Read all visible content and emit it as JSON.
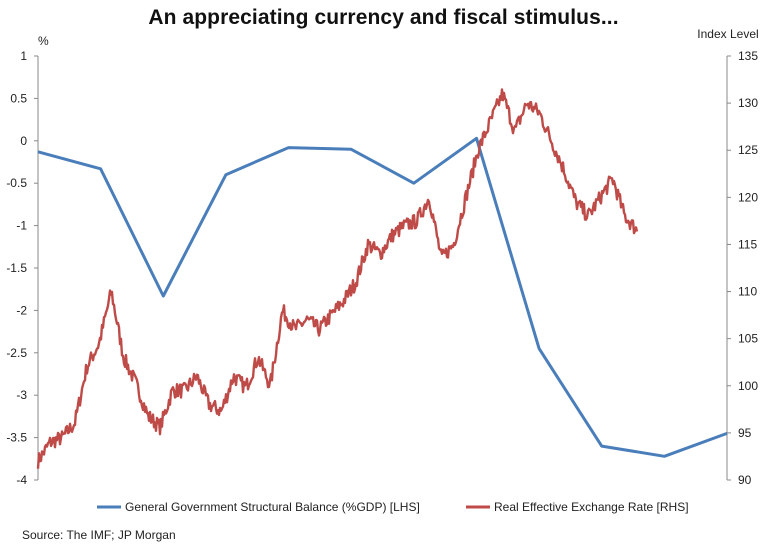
{
  "title": "An appreciating currency and fiscal stimulus...",
  "source": "Source: The IMF; JP Morgan",
  "chart_data": {
    "type": "line",
    "title": "An appreciating currency and fiscal stimulus...",
    "grid": false,
    "legend_position": "bottom",
    "left_axis": {
      "unit_label": "%",
      "ylim": [
        -4,
        1
      ],
      "ticks": [
        "1",
        "0.5",
        "0",
        "-0.5",
        "-1",
        "-1.5",
        "-2",
        "-2.5",
        "-3",
        "-3.5",
        "-4"
      ]
    },
    "right_axis": {
      "unit_label": "Index Level",
      "ylim": [
        90,
        135
      ],
      "ticks": [
        "135",
        "130",
        "125",
        "120",
        "115",
        "110",
        "105",
        "100",
        "95",
        "90"
      ]
    },
    "series": [
      {
        "name": "General Government Structural Balance (%GDP) [LHS]",
        "axis": "left",
        "color": "#4a7ebb",
        "values": [
          -0.13,
          -0.33,
          -1.83,
          -0.4,
          -0.08,
          -0.1,
          -0.5,
          0.03,
          -2.45,
          -3.6,
          -3.72,
          -3.45
        ]
      },
      {
        "name": "Real Effective Exchange Rate [RHS]",
        "axis": "right",
        "color": "#be4b48",
        "values": [
          92,
          94,
          94.5,
          96,
          102,
          104.5,
          110,
          103,
          100.3,
          96.8,
          95.6,
          99.5,
          99.5,
          101,
          98,
          97.3,
          101,
          99.8,
          103,
          100,
          108,
          106,
          107,
          106,
          107.5,
          109,
          111,
          115,
          114,
          116,
          117,
          117.5,
          120,
          113.5,
          115,
          120,
          125,
          128,
          131,
          127,
          130,
          129,
          126,
          123,
          119.5,
          118,
          120,
          122,
          118,
          116.5
        ]
      }
    ]
  }
}
